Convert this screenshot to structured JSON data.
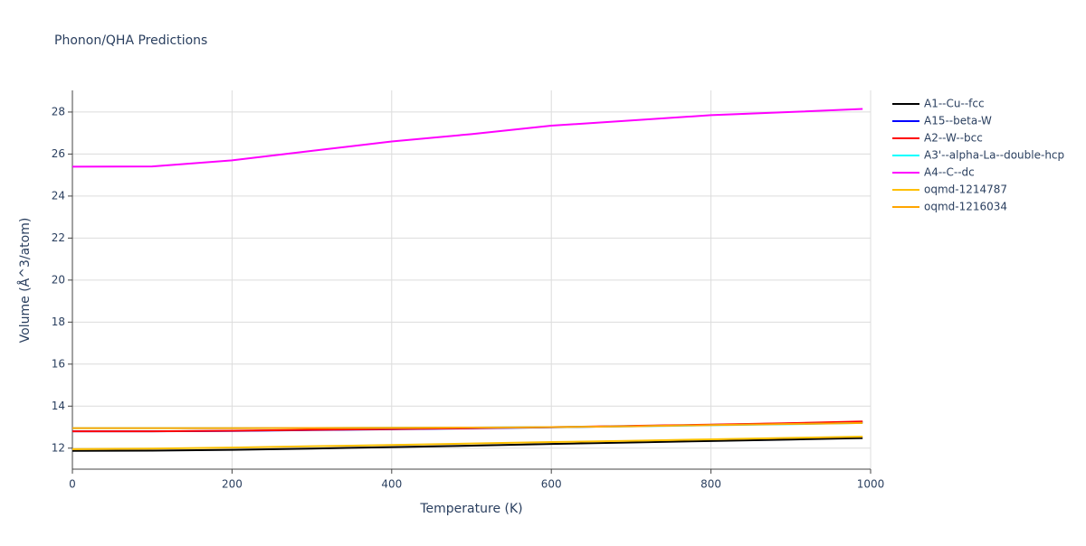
{
  "chart_data": {
    "type": "line",
    "title": "Phonon/QHA Predictions",
    "x_label": "Temperature (K)",
    "y_label": "Volume (Å^3/atom)",
    "x": [
      0,
      100,
      200,
      300,
      400,
      500,
      600,
      700,
      800,
      900,
      990
    ],
    "series": [
      {
        "name": "A1--Cu--fcc",
        "color": "#000000",
        "values": [
          11.87,
          11.88,
          11.92,
          11.98,
          12.05,
          12.12,
          12.2,
          12.27,
          12.34,
          12.41,
          12.48
        ]
      },
      {
        "name": "A15--beta-W",
        "color": "#0000ff",
        "values": [
          12.8,
          12.8,
          12.82,
          12.86,
          12.9,
          12.94,
          12.99,
          13.05,
          13.11,
          13.18,
          13.24
        ]
      },
      {
        "name": "A2--W--bcc",
        "color": "#ff0000",
        "values": [
          12.8,
          12.8,
          12.83,
          12.87,
          12.91,
          12.95,
          13.0,
          13.06,
          13.12,
          13.19,
          13.27
        ]
      },
      {
        "name": "A3'--alpha-La--double-hcp",
        "color": "#00ffff",
        "values": [
          12.95,
          12.95,
          12.95,
          12.96,
          12.97,
          12.98,
          13.0,
          13.04,
          13.09,
          13.14,
          13.2
        ]
      },
      {
        "name": "A4--C--dc",
        "color": "#ff00ff",
        "values": [
          25.4,
          25.41,
          25.7,
          26.15,
          26.6,
          26.95,
          27.35,
          27.6,
          27.85,
          28.0,
          28.15
        ]
      },
      {
        "name": "oqmd-1214787",
        "color": "#ffc000",
        "values": [
          11.95,
          11.98,
          12.03,
          12.09,
          12.15,
          12.22,
          12.29,
          12.35,
          12.42,
          12.49,
          12.55
        ]
      },
      {
        "name": "oqmd-1216034",
        "color": "#ffa500",
        "values": [
          12.95,
          12.95,
          12.95,
          12.96,
          12.97,
          12.98,
          13.0,
          13.04,
          13.1,
          13.15,
          13.2
        ]
      }
    ],
    "xlim": [
      0,
      1000
    ],
    "xticks": [
      0,
      200,
      400,
      600,
      800,
      1000
    ],
    "ylim": [
      11,
      29.03
    ],
    "yticks": [
      12,
      14,
      16,
      18,
      20,
      22,
      24,
      26,
      28
    ],
    "grid": true,
    "legend": "right"
  }
}
